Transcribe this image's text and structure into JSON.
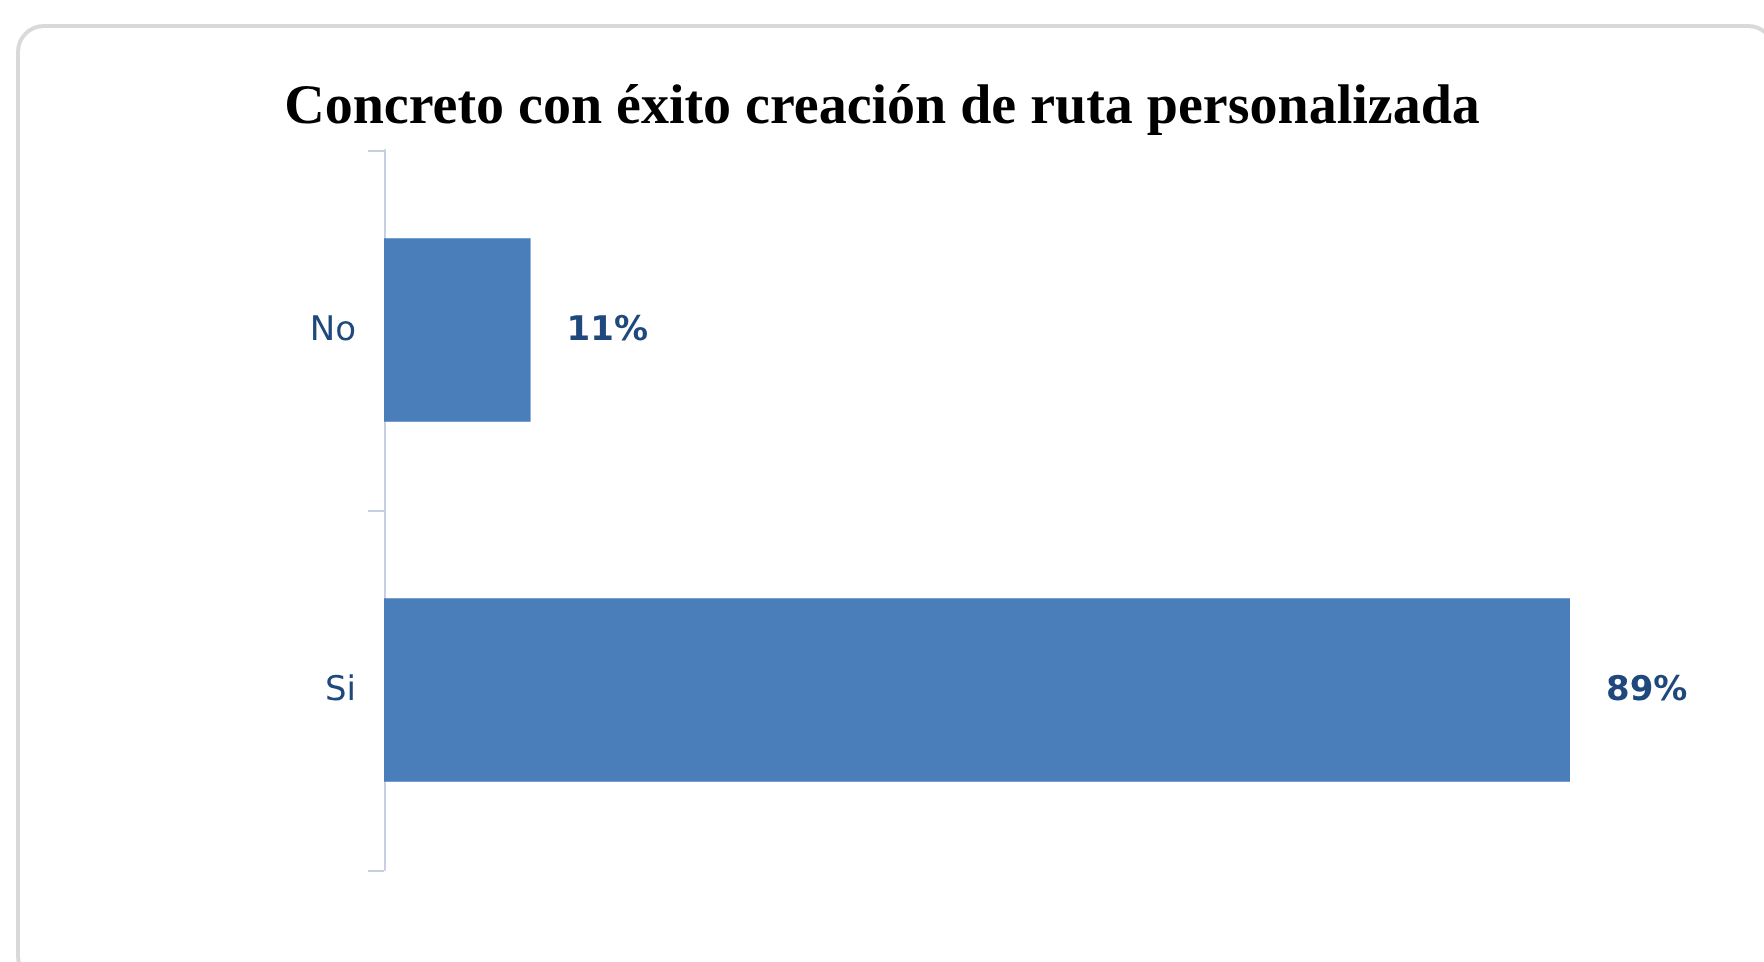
{
  "chart_data": {
    "type": "bar",
    "orientation": "horizontal",
    "title": "Concreto con éxito creación de ruta personalizada",
    "categories": [
      "No",
      "Si"
    ],
    "values": [
      11,
      89
    ],
    "value_labels": [
      "11%",
      "89%"
    ],
    "color": "#4a7ebb"
  }
}
